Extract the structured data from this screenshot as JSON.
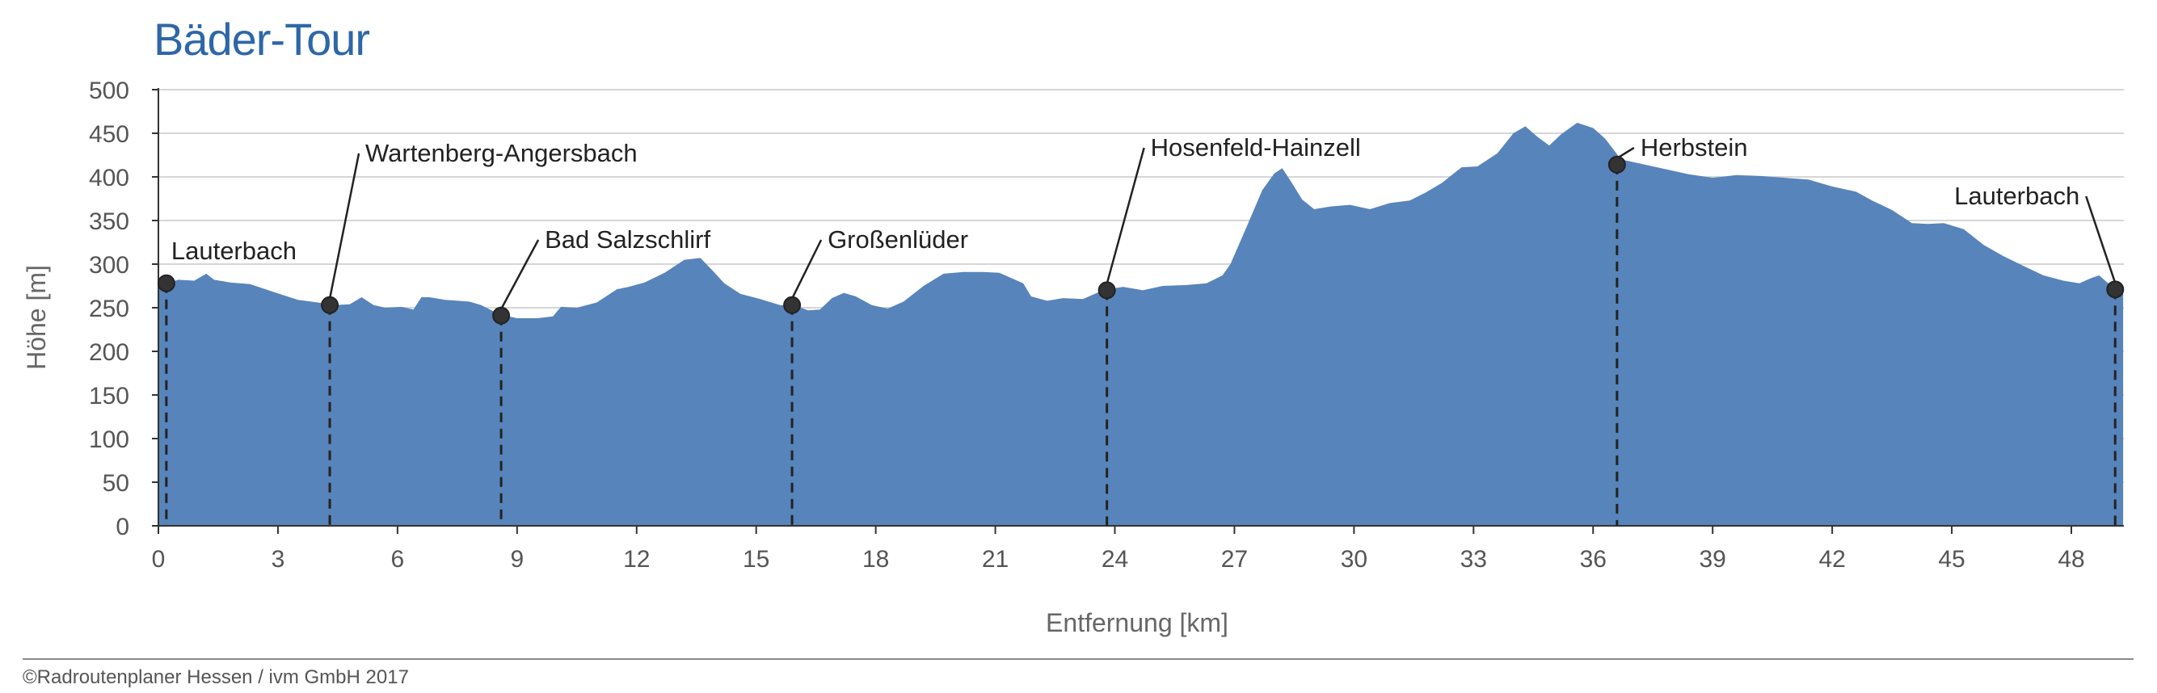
{
  "chart_data": {
    "type": "area",
    "title": "Bäder-Tour",
    "xlabel": "Entfernung [km]",
    "ylabel": "Höhe [m]",
    "xlim": [
      0,
      49.3
    ],
    "ylim": [
      0,
      500
    ],
    "x_ticks": [
      0,
      3,
      6,
      9,
      12,
      15,
      18,
      21,
      24,
      27,
      30,
      33,
      36,
      39,
      42,
      45,
      48
    ],
    "y_ticks": [
      0,
      50,
      100,
      150,
      200,
      250,
      300,
      350,
      400,
      450,
      500
    ],
    "grid": "horizontal",
    "fill_color": "#5784ba",
    "series": [
      {
        "x": [
          0,
          0.2,
          0.5,
          0.9,
          1.2,
          1.4,
          1.8,
          2.3,
          2.9,
          3.5,
          4.0,
          4.4,
          4.8,
          5.1,
          5.4,
          5.7,
          6.1,
          6.4,
          6.6,
          6.8,
          7.2,
          7.8,
          8.1,
          8.4,
          8.7,
          9.0,
          9.5,
          9.9,
          10.1,
          10.5,
          11.0,
          11.5,
          11.8,
          12.2,
          12.7,
          13.2,
          13.6,
          13.9,
          14.2,
          14.6,
          15.1,
          15.6,
          16.0,
          16.3,
          16.6,
          16.9,
          17.2,
          17.5,
          17.9,
          18.3,
          18.7,
          19.2,
          19.7,
          20.2,
          20.7,
          21.1,
          21.4,
          21.7,
          21.9,
          22.3,
          22.7,
          23.2,
          23.7,
          24.2,
          24.7,
          25.2,
          25.8,
          26.3,
          26.7,
          26.9,
          27.3,
          27.7,
          28.0,
          28.2,
          28.4,
          28.7,
          29.0,
          29.4,
          29.9,
          30.4,
          30.9,
          31.4,
          31.8,
          32.2,
          32.7,
          33.1,
          33.6,
          34.0,
          34.3,
          34.6,
          34.9,
          35.2,
          35.6,
          36.0,
          36.3,
          36.7,
          37.2,
          37.8,
          38.4,
          39.0,
          39.6,
          40.2,
          40.8,
          41.4,
          42.0,
          42.6,
          43.0,
          43.5,
          44.0,
          44.4,
          44.8,
          45.3,
          45.8,
          46.3,
          46.8,
          47.3,
          47.8,
          48.2,
          48.5,
          48.7,
          48.9,
          49.1,
          49.3
        ],
        "y": [
          275,
          278,
          282,
          281,
          289,
          282,
          279,
          277,
          268,
          259,
          256,
          253,
          254,
          262,
          253,
          250,
          251,
          248,
          262,
          262,
          259,
          257,
          253,
          246,
          241,
          238,
          238,
          240,
          251,
          250,
          256,
          271,
          274,
          279,
          290,
          305,
          307,
          293,
          278,
          266,
          260,
          253,
          252,
          247,
          248,
          261,
          267,
          263,
          253,
          249,
          257,
          275,
          289,
          291,
          291,
          290,
          284,
          278,
          263,
          258,
          261,
          260,
          270,
          274,
          270,
          275,
          276,
          278,
          287,
          300,
          342,
          385,
          404,
          410,
          396,
          374,
          363,
          366,
          368,
          363,
          370,
          373,
          382,
          393,
          411,
          412,
          427,
          450,
          458,
          446,
          436,
          449,
          462,
          456,
          444,
          420,
          415,
          409,
          403,
          399,
          402,
          401,
          399,
          397,
          389,
          383,
          373,
          362,
          347,
          346,
          347,
          340,
          322,
          309,
          298,
          287,
          281,
          278,
          284,
          287,
          279,
          275,
          272
        ]
      }
    ],
    "stops": [
      {
        "name": "Lauterbach",
        "km": 0.2,
        "elevation": 278,
        "label_side": "right"
      },
      {
        "name": "Wartenberg-Angersbach",
        "km": 4.3,
        "elevation": 253,
        "label_side": "right"
      },
      {
        "name": "Bad Salzschlirf",
        "km": 8.6,
        "elevation": 241,
        "label_side": "right"
      },
      {
        "name": "Großenlüder",
        "km": 15.9,
        "elevation": 253,
        "label_side": "right"
      },
      {
        "name": "Hosenfeld-Hainzell",
        "km": 23.8,
        "elevation": 270,
        "label_side": "right"
      },
      {
        "name": "Herbstein",
        "km": 36.6,
        "elevation": 414,
        "label_side": "right"
      },
      {
        "name": "Lauterbach",
        "km": 49.1,
        "elevation": 271,
        "label_side": "left"
      }
    ]
  },
  "footer": {
    "credit": "©Radroutenplaner Hessen / ivm GmbH 2017"
  }
}
